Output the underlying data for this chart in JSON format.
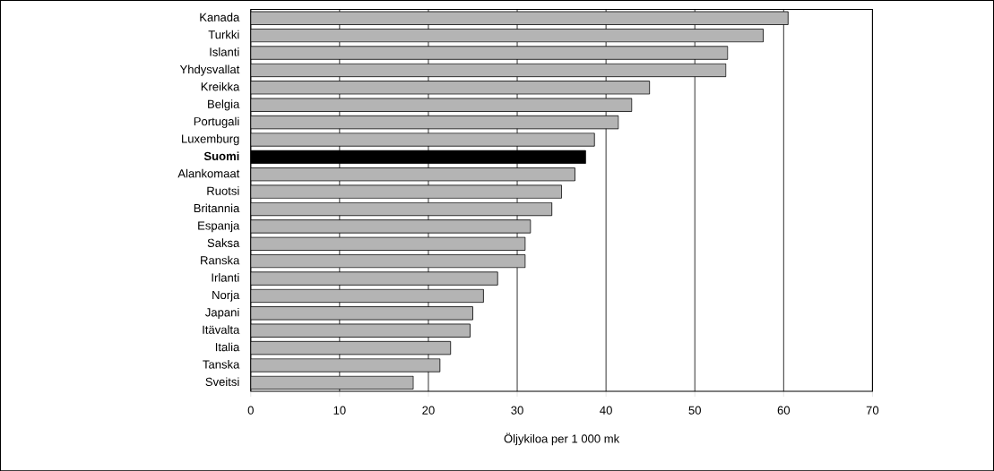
{
  "chart_data": {
    "type": "bar",
    "orientation": "horizontal",
    "xlabel": "Öljykiloa per 1 000 mk",
    "categories": [
      "Kanada",
      "Turkki",
      "Islanti",
      "Yhdysvallat",
      "Kreikka",
      "Belgia",
      "Portugali",
      "Luxemburg",
      "**Suomi**",
      "Alankomaat",
      "Ruotsi",
      "Britannia",
      "Espanja",
      "Saksa",
      "Ranska",
      "Irlanti",
      "Norja",
      "Japani",
      "Itävalta",
      "Italia",
      "Tanska",
      "Sveitsi"
    ],
    "values": [
      60.5,
      57.7,
      53.7,
      53.5,
      44.9,
      42.9,
      41.4,
      38.7,
      37.7,
      36.5,
      35.0,
      33.9,
      31.5,
      30.9,
      30.9,
      27.8,
      26.2,
      25.0,
      24.7,
      22.5,
      21.3,
      18.3
    ],
    "colors": [
      "#b4b4b4",
      "#b4b4b4",
      "#b4b4b4",
      "#b4b4b4",
      "#b4b4b4",
      "#b4b4b4",
      "#b4b4b4",
      "#b4b4b4",
      "#000000",
      "#b4b4b4",
      "#b4b4b4",
      "#b4b4b4",
      "#b4b4b4",
      "#b4b4b4",
      "#b4b4b4",
      "#b4b4b4",
      "#b4b4b4",
      "#b4b4b4",
      "#b4b4b4",
      "#b4b4b4",
      "#b4b4b4",
      "#b4b4b4"
    ],
    "xlim": [
      0,
      70
    ],
    "xticks": [
      0,
      10,
      20,
      30,
      40,
      50,
      60,
      70
    ],
    "grid": "x"
  }
}
